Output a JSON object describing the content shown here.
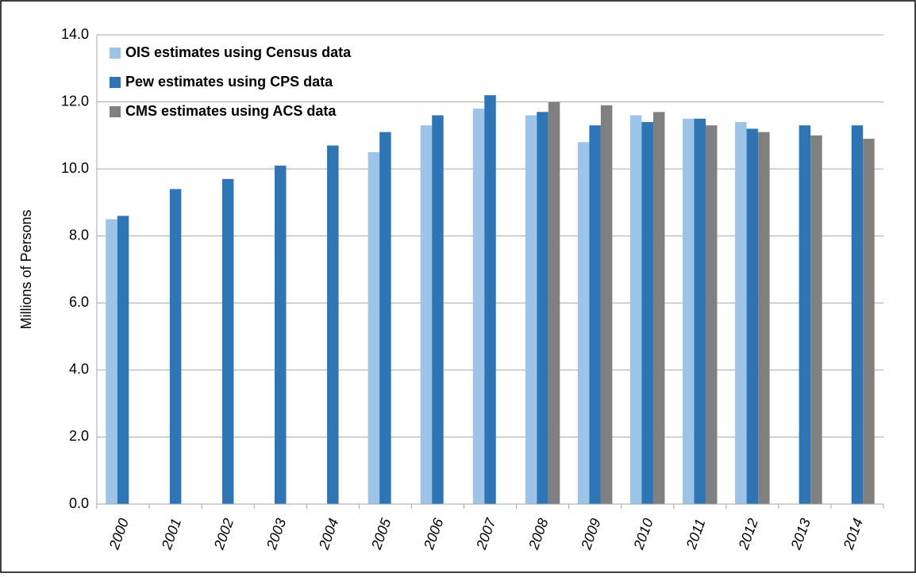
{
  "chart_data": {
    "type": "bar",
    "y_label": "Millions of Persons",
    "categories": [
      "2000",
      "2001",
      "2002",
      "2003",
      "2004",
      "2005",
      "2006",
      "2007",
      "2008",
      "2009",
      "2010",
      "2011",
      "2012",
      "2013",
      "2014"
    ],
    "series": [
      {
        "name": "OIS estimates using Census data",
        "color": "#9dc3e6",
        "values": [
          8.5,
          null,
          null,
          null,
          null,
          10.5,
          11.3,
          11.8,
          11.6,
          10.8,
          11.6,
          11.5,
          11.4,
          null,
          null
        ]
      },
      {
        "name": "Pew estimates using CPS data",
        "color": "#2e75b6",
        "values": [
          8.6,
          9.4,
          9.7,
          10.1,
          10.7,
          11.1,
          11.6,
          12.2,
          11.7,
          11.3,
          11.4,
          11.5,
          11.2,
          11.3,
          11.3
        ]
      },
      {
        "name": "CMS estimates using ACS data",
        "color": "#808080",
        "values": [
          null,
          null,
          null,
          null,
          null,
          null,
          null,
          null,
          12.0,
          11.9,
          11.7,
          11.3,
          11.1,
          11.0,
          10.9
        ]
      }
    ],
    "ylim": [
      0,
      14
    ],
    "yticks": [
      {
        "value": 0,
        "label": "0.0"
      },
      {
        "value": 2,
        "label": "2.0"
      },
      {
        "value": 4,
        "label": "4.0"
      },
      {
        "value": 6,
        "label": "6.0"
      },
      {
        "value": 8,
        "label": "8.0"
      },
      {
        "value": 10,
        "label": "10.0"
      },
      {
        "value": 12,
        "label": "12.0"
      },
      {
        "value": 14,
        "label": "14.0"
      }
    ],
    "grid": true,
    "legend": "upper-left"
  }
}
